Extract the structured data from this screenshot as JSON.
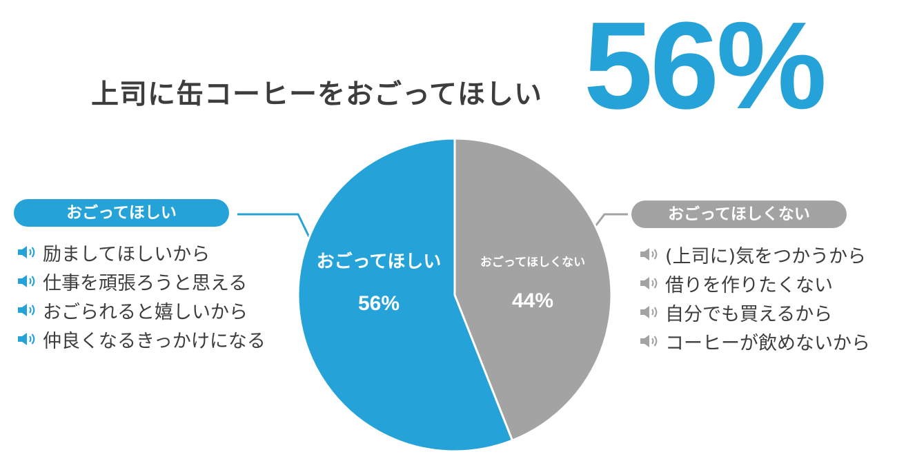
{
  "title": "上司に缶コーヒーをおごってほしい",
  "headline_percent": "56%",
  "colors": {
    "want": "#25a3d8",
    "not_want": "#a3a3a3",
    "text": "#3d3d3d"
  },
  "left_group": {
    "label": "おごってほしい",
    "reasons": [
      "励ましてほしいから",
      "仕事を頑張ろうと思える",
      "おごられると嬉しいから",
      "仲良くなるきっかけになる"
    ],
    "reason_icon": "speaker-icon"
  },
  "right_group": {
    "label": "おごってほしくない",
    "reasons": [
      "(上司に)気をつかうから",
      "借りを作りたくない",
      "自分でも買えるから",
      "コーヒーが飲めないから"
    ],
    "reason_icon": "speaker-icon"
  },
  "chart_data": {
    "type": "pie",
    "title": "上司に缶コーヒーをおごってほしい",
    "slices": [
      {
        "label": "おごってほしい",
        "value": 56,
        "value_label": "56%",
        "color": "#25a3d8"
      },
      {
        "label": "おごってほしくない",
        "value": 44,
        "value_label": "44%",
        "color": "#a3a3a3"
      }
    ],
    "start": "top",
    "direction": "counterclockwise"
  }
}
